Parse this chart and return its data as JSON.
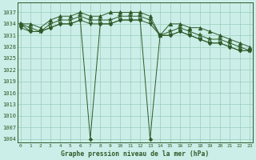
{
  "title": "Graphe pression niveau de la mer (hPa)",
  "bg_color": "#cceee8",
  "grid_color": "#99ccbb",
  "line_color": "#2d5a27",
  "x_ticks": [
    0,
    1,
    2,
    3,
    4,
    5,
    6,
    7,
    8,
    9,
    10,
    11,
    12,
    13,
    14,
    15,
    16,
    17,
    18,
    19,
    20,
    21,
    22,
    23
  ],
  "y_ticks": [
    1004,
    1007,
    1010,
    1013,
    1016,
    1019,
    1022,
    1025,
    1028,
    1031,
    1034,
    1037
  ],
  "ylim": [
    1003.0,
    1039.5
  ],
  "xlim": [
    -0.3,
    23.3
  ],
  "series": {
    "s1_max": [
      1034,
      1034,
      1033,
      1035,
      1036,
      1036,
      1037,
      1036,
      1036,
      1037,
      1037,
      1037,
      1037,
      1036,
      1031,
      1034,
      1034,
      1033,
      1033,
      1032,
      1031,
      1030,
      1029,
      1028
    ],
    "s2_mean": [
      1034,
      1033,
      1032,
      1034,
      1035,
      1035,
      1036,
      1035,
      1035,
      1035,
      1036,
      1036,
      1036,
      1035,
      1031,
      1032,
      1033,
      1032,
      1031,
      1030,
      1030,
      1029,
      1028,
      1027
    ],
    "s3_min": [
      1033,
      1032,
      1032,
      1033,
      1034,
      1034,
      1035,
      1034,
      1034,
      1034,
      1035,
      1035,
      1035,
      1034,
      1031,
      1031,
      1032,
      1031,
      1030,
      1029,
      1029,
      1028,
      1027,
      1027
    ],
    "s4_dip": [
      1034,
      1032,
      1032,
      1033,
      1034,
      1034,
      1035,
      1004,
      1034,
      1034,
      1035,
      1035,
      1035,
      1004,
      1031,
      1031,
      1032,
      1031,
      1030,
      1029,
      1029,
      1028,
      1027,
      1027
    ]
  },
  "markers": [
    "^",
    "*",
    "v",
    "D"
  ],
  "marker_sizes": [
    3.5,
    4.5,
    3.5,
    2.5
  ]
}
